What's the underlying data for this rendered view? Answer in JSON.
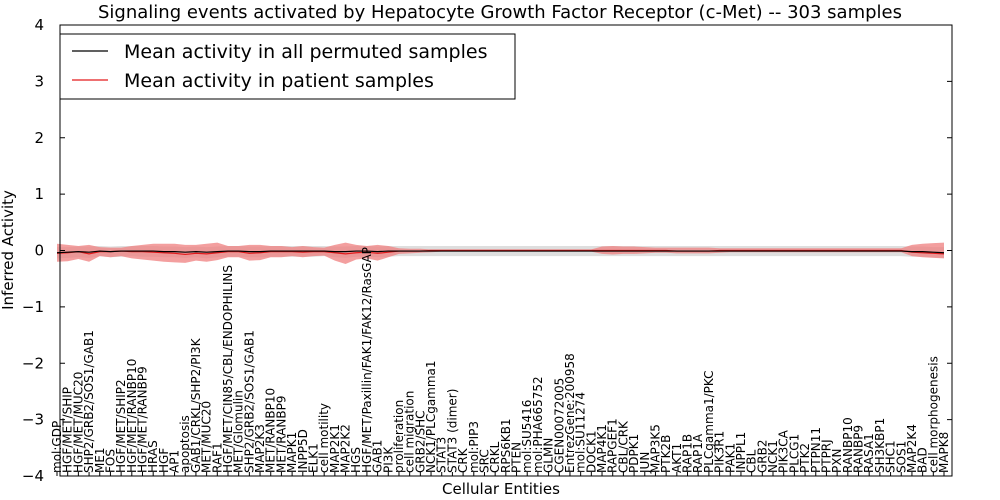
{
  "chart_data": {
    "type": "line",
    "title": "Signaling events activated by Hepatocyte Growth Factor Receptor (c-Met) -- 303 samples",
    "xlabel": "Cellular Entities",
    "ylabel": "Inferred Activity",
    "ylim": [
      -4,
      4
    ],
    "yticks": [
      4,
      3,
      2,
      1,
      0,
      -1,
      -2,
      -3,
      -4
    ],
    "ytick_labels": [
      "4",
      "3",
      "2",
      "1",
      "0",
      "−1",
      "−2",
      "−3",
      "−4"
    ],
    "grid": false,
    "legend_position": "top-left",
    "categories": [
      "mol:GDP",
      "HGF/MET/SHIP",
      "HGF/MET/MUC20",
      "SHP2/GRB2/SOS1/GAB1",
      "ME1",
      "FOS",
      "HGF/MET/SHIP2",
      "HGF/MET/RANBP10",
      "HGF/MET/RANBP9",
      "HRAS",
      "HGF",
      "AP1",
      "apoptosis",
      "GAB1/CRKL/SHP2/PI3K",
      "MET/MUC20",
      "RAF1",
      "HGF/MET/CIN85/CBL/ENDOPHILINS",
      "MET/Glomulin",
      "SHP2/GRB2/SOS1/GAB1",
      "MAP2K3",
      "MET/RANBP10",
      "MET/RANBP9",
      "MAPK1",
      "INPP5D",
      "ELK1",
      "cell motility",
      "MAP2K1",
      "MAP2K2",
      "HGS",
      "HGF/MET/Paxillin/FAK1/FAK12/RasGAP",
      "GAB1",
      "PI3K",
      "proliferation",
      "cell migration",
      "GRB2/SHC",
      "NCK1/PLCgamma1",
      "STAT3",
      "STAT3 (dimer)",
      "CRK",
      "mol:PIP3",
      "SRC",
      "CRKL",
      "RPS6KB1",
      "PTEN",
      "mol:SU5416",
      "mol:PHA665752",
      "GLMN",
      "CGEN00072005",
      "EntrezGene:200958",
      "mol:SU11274",
      "DOCK1",
      "MAP4K1",
      "RAPGEF1",
      "CBL/CRK",
      "PDPK1",
      "JUN",
      "MAP3K5",
      "PTK2B",
      "AKT1",
      "RAP1B",
      "RAP1A",
      "PLCgamma1/PKC",
      "PIK3R1",
      "PAK1",
      "INPPL1",
      "CBL",
      "GRB2",
      "NCK1",
      "PIK3CA",
      "PLCG1",
      "PTK2",
      "PTPN11",
      "PTPRJ",
      "PXN",
      "RANBP10",
      "RANBP9",
      "RASA1",
      "SH3KBP1",
      "SHC1",
      "SOS1",
      "MAP2K4",
      "BAD",
      "cell morphogenesis",
      "MAPK8"
    ],
    "series": [
      {
        "name": "Mean activity in all permuted samples",
        "color": "#000000",
        "values": [
          -0.04,
          -0.03,
          -0.02,
          -0.03,
          -0.01,
          -0.02,
          -0.01,
          -0.01,
          -0.01,
          -0.01,
          -0.02,
          -0.02,
          -0.03,
          -0.02,
          -0.03,
          -0.02,
          -0.01,
          -0.01,
          -0.02,
          -0.02,
          -0.01,
          -0.01,
          -0.01,
          -0.01,
          -0.01,
          -0.01,
          -0.02,
          -0.02,
          -0.01,
          -0.01,
          -0.02,
          -0.01,
          -0.01,
          -0.01,
          -0.01,
          -0.01,
          -0.01,
          -0.01,
          -0.01,
          -0.01,
          -0.01,
          -0.01,
          -0.01,
          -0.01,
          -0.01,
          -0.01,
          -0.01,
          -0.01,
          -0.01,
          -0.01,
          -0.01,
          -0.01,
          -0.01,
          -0.01,
          -0.01,
          -0.01,
          -0.01,
          -0.01,
          -0.01,
          -0.01,
          -0.01,
          -0.01,
          -0.01,
          -0.01,
          -0.01,
          -0.01,
          -0.01,
          -0.01,
          -0.01,
          -0.01,
          -0.01,
          -0.01,
          -0.01,
          -0.01,
          -0.01,
          -0.01,
          -0.01,
          -0.01,
          -0.01,
          -0.01,
          -0.02,
          -0.02,
          -0.03,
          -0.04
        ],
        "band_low": [
          -0.14,
          -0.13,
          -0.12,
          -0.13,
          -0.1,
          -0.12,
          -0.11,
          -0.1,
          -0.11,
          -0.11,
          -0.12,
          -0.12,
          -0.13,
          -0.12,
          -0.14,
          -0.12,
          -0.11,
          -0.11,
          -0.12,
          -0.12,
          -0.11,
          -0.11,
          -0.11,
          -0.11,
          -0.11,
          -0.1,
          -0.12,
          -0.13,
          -0.11,
          -0.11,
          -0.12,
          -0.11,
          -0.1,
          -0.1,
          -0.1,
          -0.1,
          -0.1,
          -0.1,
          -0.1,
          -0.1,
          -0.1,
          -0.1,
          -0.1,
          -0.1,
          -0.1,
          -0.1,
          -0.1,
          -0.1,
          -0.1,
          -0.1,
          -0.1,
          -0.1,
          -0.1,
          -0.1,
          -0.1,
          -0.1,
          -0.1,
          -0.1,
          -0.1,
          -0.1,
          -0.1,
          -0.1,
          -0.1,
          -0.1,
          -0.1,
          -0.1,
          -0.1,
          -0.1,
          -0.1,
          -0.1,
          -0.1,
          -0.1,
          -0.1,
          -0.1,
          -0.1,
          -0.1,
          -0.1,
          -0.1,
          -0.1,
          -0.1,
          -0.11,
          -0.11,
          -0.12,
          -0.13
        ],
        "band_high": [
          0.06,
          0.06,
          0.07,
          0.07,
          0.08,
          0.07,
          0.08,
          0.08,
          0.08,
          0.08,
          0.07,
          0.07,
          0.06,
          0.07,
          0.06,
          0.07,
          0.08,
          0.08,
          0.07,
          0.07,
          0.08,
          0.08,
          0.08,
          0.08,
          0.08,
          0.08,
          0.07,
          0.07,
          0.08,
          0.08,
          0.07,
          0.08,
          0.08,
          0.08,
          0.08,
          0.08,
          0.08,
          0.08,
          0.08,
          0.08,
          0.08,
          0.08,
          0.08,
          0.08,
          0.08,
          0.08,
          0.08,
          0.08,
          0.08,
          0.08,
          0.08,
          0.08,
          0.08,
          0.08,
          0.08,
          0.08,
          0.08,
          0.08,
          0.08,
          0.08,
          0.08,
          0.08,
          0.08,
          0.08,
          0.08,
          0.08,
          0.08,
          0.08,
          0.08,
          0.08,
          0.08,
          0.08,
          0.08,
          0.08,
          0.08,
          0.08,
          0.08,
          0.08,
          0.08,
          0.08,
          0.07,
          0.07,
          0.06,
          0.06
        ]
      },
      {
        "name": "Mean activity in patient samples",
        "color": "#e31a1c",
        "values": [
          -0.05,
          -0.04,
          -0.02,
          -0.06,
          -0.02,
          -0.02,
          -0.01,
          -0.02,
          -0.02,
          -0.03,
          -0.04,
          -0.05,
          -0.07,
          -0.05,
          -0.06,
          -0.04,
          -0.02,
          -0.02,
          -0.05,
          -0.04,
          -0.02,
          -0.02,
          -0.02,
          -0.03,
          -0.02,
          -0.02,
          -0.04,
          -0.06,
          -0.04,
          -0.03,
          -0.05,
          -0.03,
          -0.01,
          -0.01,
          -0.01,
          0.0,
          0.0,
          0.0,
          0.0,
          0.0,
          0.0,
          0.0,
          0.0,
          0.0,
          0.0,
          0.0,
          0.0,
          0.0,
          0.0,
          0.0,
          0.0,
          0.0,
          0.0,
          0.0,
          0.0,
          0.0,
          0.0,
          0.0,
          -0.01,
          -0.01,
          -0.01,
          -0.01,
          0.0,
          0.0,
          0.0,
          0.0,
          0.0,
          0.0,
          0.0,
          0.0,
          0.0,
          0.0,
          0.0,
          0.0,
          0.0,
          0.0,
          0.0,
          0.0,
          0.0,
          0.0,
          -0.03,
          -0.04,
          -0.05,
          -0.06
        ],
        "band_low": [
          -0.2,
          -0.19,
          -0.15,
          -0.2,
          -0.1,
          -0.12,
          -0.1,
          -0.14,
          -0.16,
          -0.18,
          -0.2,
          -0.21,
          -0.22,
          -0.18,
          -0.2,
          -0.17,
          -0.12,
          -0.12,
          -0.18,
          -0.17,
          -0.12,
          -0.12,
          -0.1,
          -0.12,
          -0.1,
          -0.09,
          -0.18,
          -0.24,
          -0.16,
          -0.14,
          -0.18,
          -0.12,
          -0.06,
          -0.05,
          -0.04,
          -0.03,
          -0.02,
          -0.02,
          -0.02,
          -0.02,
          -0.02,
          -0.02,
          -0.02,
          -0.02,
          -0.02,
          -0.02,
          -0.02,
          -0.02,
          -0.02,
          -0.02,
          -0.02,
          -0.06,
          -0.07,
          -0.06,
          -0.06,
          -0.05,
          -0.04,
          -0.04,
          -0.05,
          -0.05,
          -0.05,
          -0.05,
          -0.04,
          -0.03,
          -0.03,
          -0.03,
          -0.03,
          -0.03,
          -0.03,
          -0.03,
          -0.03,
          -0.03,
          -0.03,
          -0.03,
          -0.03,
          -0.03,
          -0.03,
          -0.03,
          -0.03,
          -0.03,
          -0.1,
          -0.12,
          -0.13,
          -0.14
        ],
        "band_high": [
          0.12,
          0.1,
          0.08,
          0.1,
          0.06,
          0.05,
          0.05,
          0.08,
          0.1,
          0.12,
          0.12,
          0.12,
          0.1,
          0.1,
          0.12,
          0.14,
          0.08,
          0.08,
          0.1,
          0.1,
          0.08,
          0.08,
          0.06,
          0.08,
          0.06,
          0.05,
          0.1,
          0.14,
          0.1,
          0.08,
          0.1,
          0.08,
          0.04,
          0.03,
          0.03,
          0.02,
          0.02,
          0.02,
          0.02,
          0.02,
          0.02,
          0.02,
          0.02,
          0.02,
          0.02,
          0.02,
          0.02,
          0.02,
          0.02,
          0.02,
          0.02,
          0.07,
          0.08,
          0.07,
          0.07,
          0.06,
          0.05,
          0.05,
          0.05,
          0.05,
          0.05,
          0.05,
          0.04,
          0.04,
          0.04,
          0.04,
          0.04,
          0.04,
          0.04,
          0.04,
          0.04,
          0.04,
          0.04,
          0.04,
          0.04,
          0.04,
          0.04,
          0.04,
          0.04,
          0.04,
          0.1,
          0.12,
          0.13,
          0.14
        ]
      }
    ]
  }
}
